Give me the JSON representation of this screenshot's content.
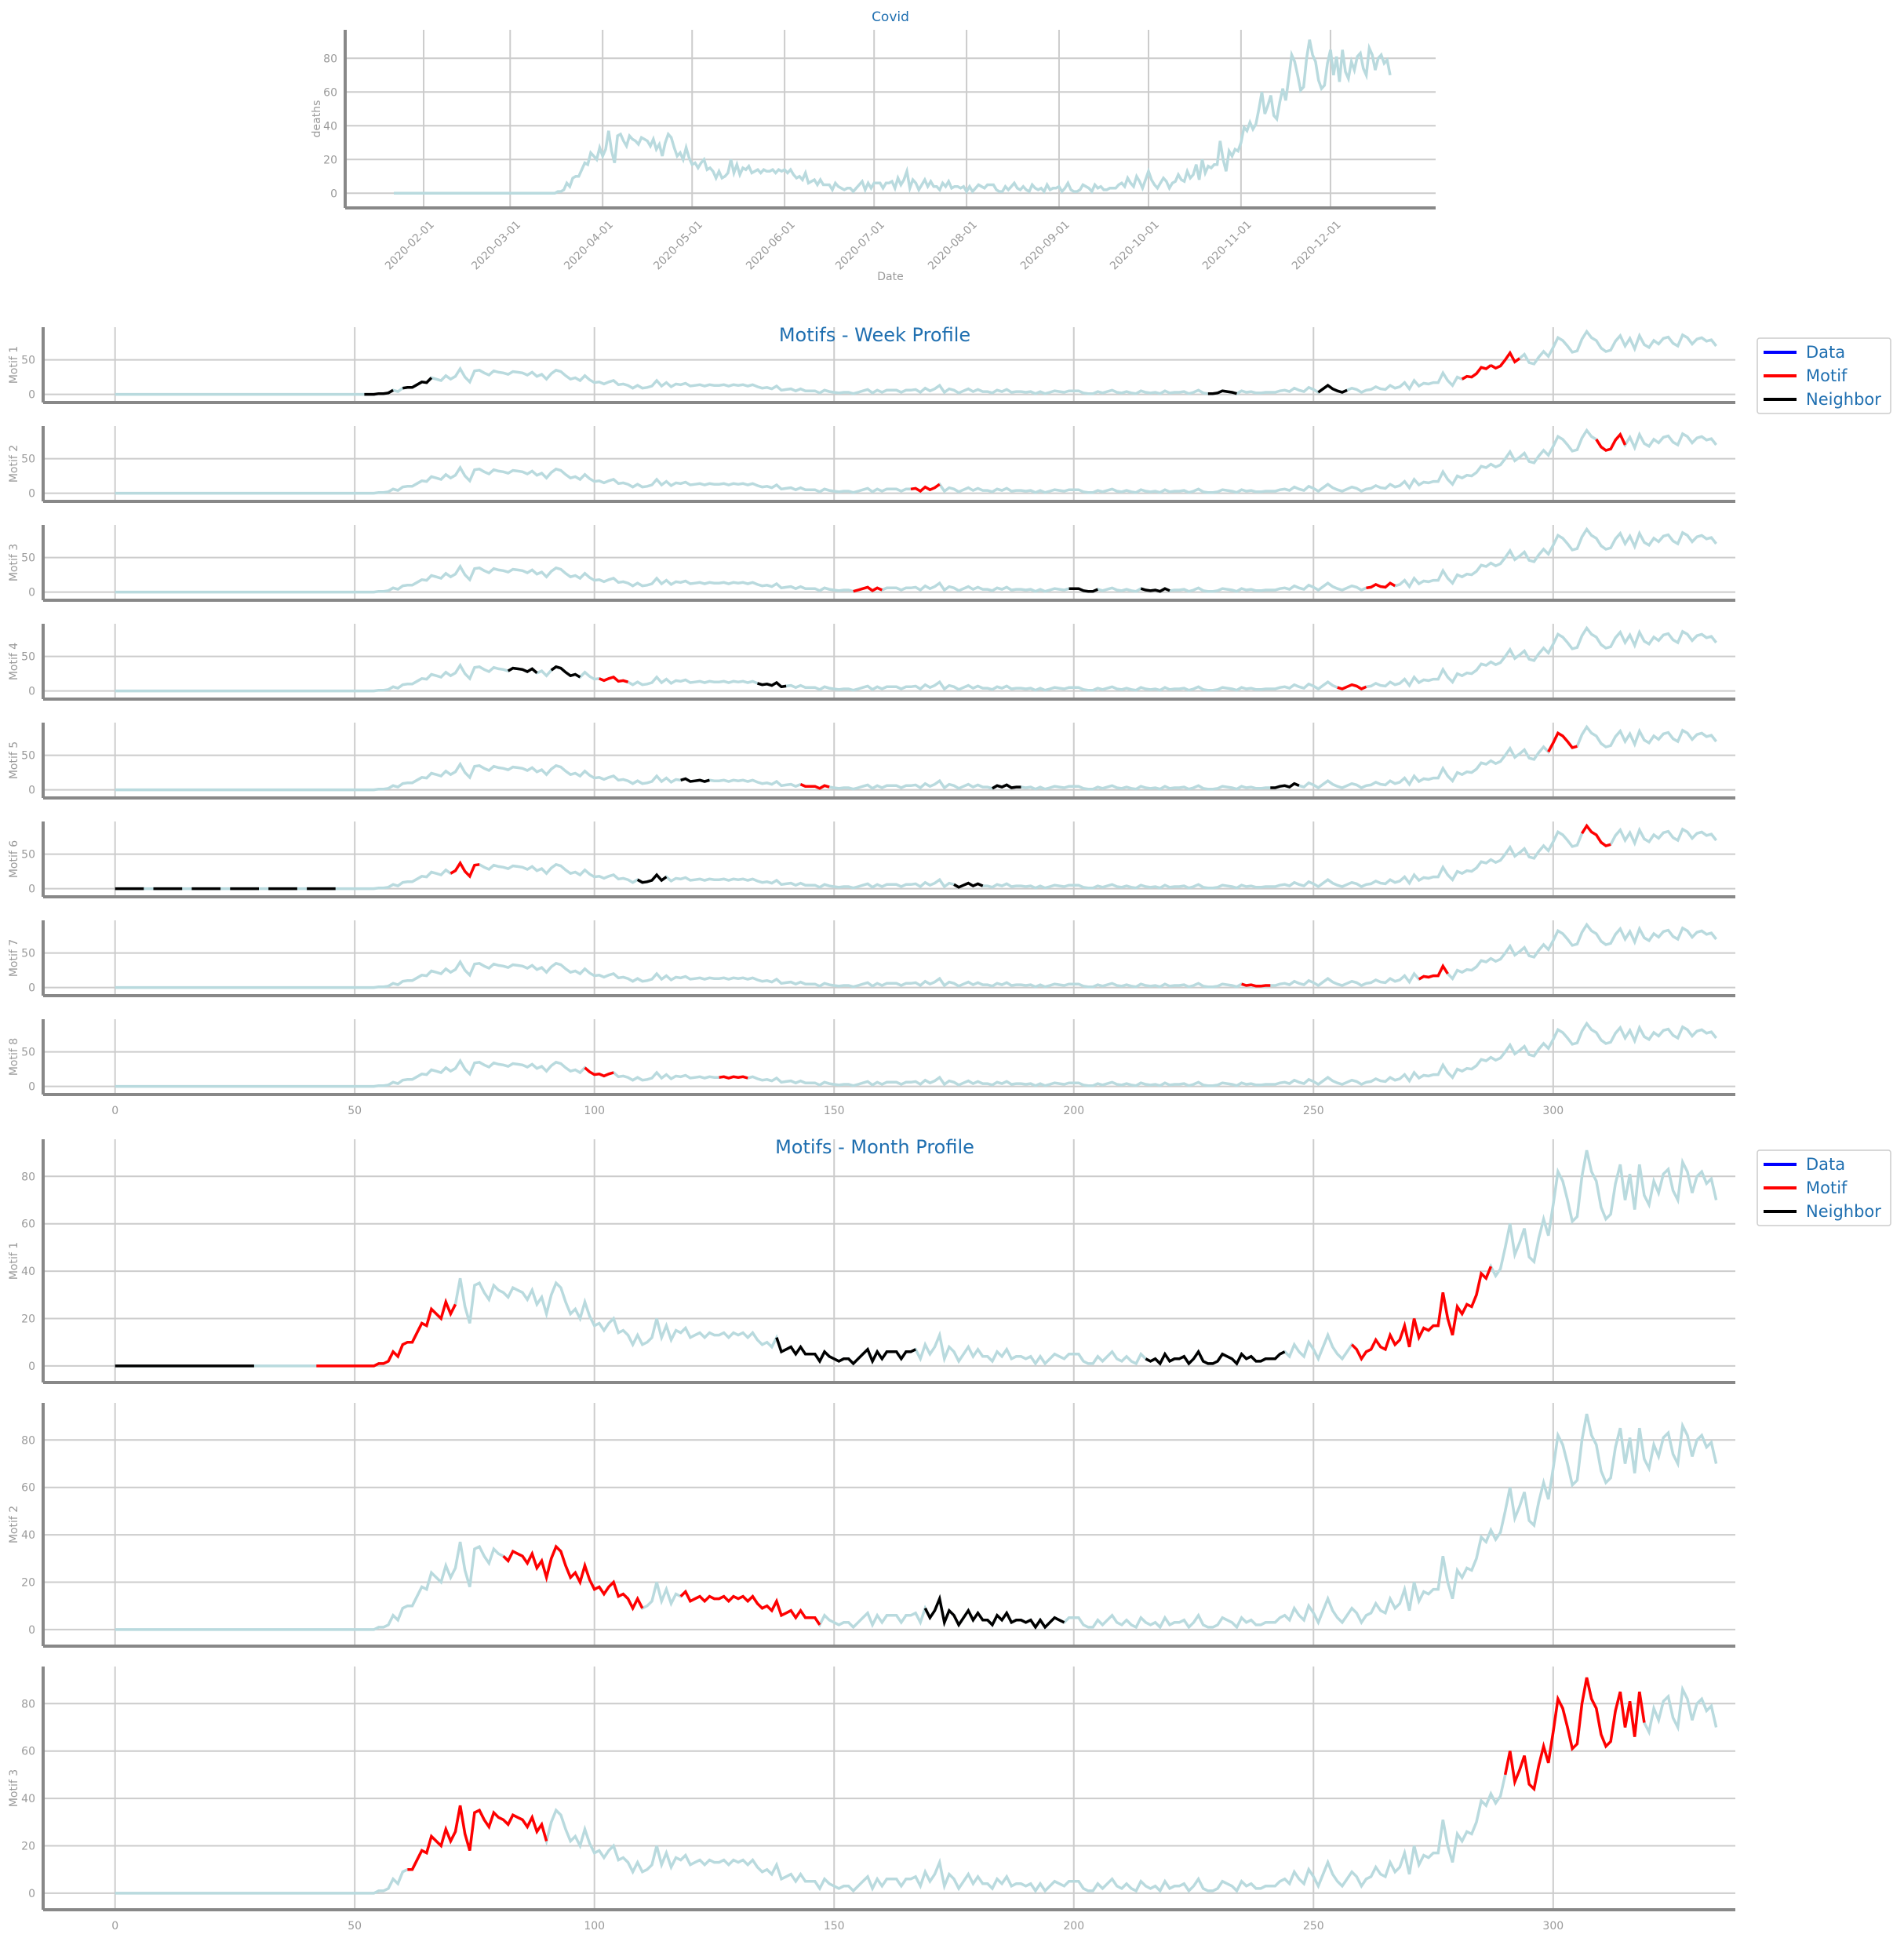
{
  "colors": {
    "data": "#b9dade",
    "motif": "#ff0000",
    "neighbor": "#000000",
    "legend_data": "#0000ff",
    "grid": "#cccccc",
    "spine": "#888888",
    "title": "#1f6fb0"
  },
  "covid_chart": {
    "title": "Covid",
    "xlabel": "Date",
    "ylabel": "deaths",
    "date_ticks": [
      "2020-02-01",
      "2020-03-01",
      "2020-04-01",
      "2020-05-01",
      "2020-06-01",
      "2020-07-01",
      "2020-08-01",
      "2020-09-01",
      "2020-10-01",
      "2020-11-01",
      "2020-12-01"
    ],
    "y_ticks": [
      "0",
      "20",
      "40",
      "60",
      "80"
    ]
  },
  "week_profile": {
    "title": "Motifs - Week Profile",
    "panel_labels": [
      "Motif 1",
      "Motif 2",
      "Motif 3",
      "Motif 4",
      "Motif 5",
      "Motif 6",
      "Motif 7",
      "Motif 8"
    ],
    "y_ticks": [
      "0",
      "50"
    ],
    "x_ticks": [
      "0",
      "50",
      "100",
      "150",
      "200",
      "250",
      "300"
    ]
  },
  "month_profile": {
    "title": "Motifs - Month Profile",
    "panel_labels": [
      "Motif 1",
      "Motif 2",
      "Motif 3"
    ],
    "y_ticks": [
      "0",
      "20",
      "40",
      "60",
      "80"
    ],
    "x_ticks": [
      "0",
      "50",
      "100",
      "150",
      "200",
      "250",
      "300"
    ]
  },
  "legend": {
    "data": "Data",
    "motif": "Motif",
    "neighbor": "Neighbor"
  },
  "chart_data": [
    {
      "type": "line",
      "title": "Covid",
      "xlabel": "Date",
      "ylabel": "deaths",
      "x_start": "2020-01-22",
      "x_range": [
        "2020-01-22",
        "2020-12-08"
      ],
      "ylim": [
        -5,
        95
      ],
      "series": [
        {
          "values": "deaths_series"
        }
      ],
      "grid": true
    },
    {
      "type": "line",
      "title": "Motifs - Week Profile",
      "panels": 8,
      "window": 7,
      "xlim": [
        -15,
        338
      ],
      "motifs": [
        {
          "label": "Motif 1",
          "motif_starts": [
            281,
            287
          ],
          "neighbor_starts": [
            52,
            60,
            228,
            251
          ]
        },
        {
          "label": "Motif 2",
          "motif_starts": [
            166,
            309
          ],
          "neighbor_starts": []
        },
        {
          "label": "Motif 3",
          "motif_starts": [
            154,
            261
          ],
          "neighbor_starts": [
            199,
            214
          ]
        },
        {
          "label": "Motif 4",
          "motif_starts": [
            101,
            255
          ],
          "neighbor_starts": [
            82,
            91,
            134
          ]
        },
        {
          "label": "Motif 5",
          "motif_starts": [
            143,
            299
          ],
          "neighbor_starts": [
            118,
            183,
            241
          ]
        },
        {
          "label": "Motif 6",
          "motif_starts": [
            70,
            306
          ],
          "neighbor_starts": [
            0,
            8,
            16,
            24,
            32,
            40,
            109,
            175
          ]
        },
        {
          "label": "Motif 7",
          "motif_starts": [
            235,
            272
          ],
          "neighbor_starts": []
        },
        {
          "label": "Motif 8",
          "motif_starts": [
            98,
            126
          ],
          "neighbor_starts": []
        }
      ],
      "legend": [
        "Data",
        "Motif",
        "Neighbor"
      ],
      "legend_position": "right"
    },
    {
      "type": "line",
      "title": "Motifs - Month Profile",
      "panels": 3,
      "window": 30,
      "xlim": [
        -15,
        338
      ],
      "motifs": [
        {
          "label": "Motif 1",
          "motif_starts": [
            42,
            258
          ],
          "neighbor_starts": [
            0,
            138,
            215
          ]
        },
        {
          "label": "Motif 2",
          "motif_starts": [
            81,
            118
          ],
          "neighbor_starts": [
            169
          ]
        },
        {
          "label": "Motif 3",
          "motif_starts": [
            61,
            290
          ],
          "neighbor_starts": []
        }
      ],
      "legend": [
        "Data",
        "Motif",
        "Neighbor"
      ],
      "legend_position": "right"
    }
  ],
  "deaths_series": [
    0,
    0,
    0,
    0,
    0,
    0,
    0,
    0,
    0,
    0,
    0,
    0,
    0,
    0,
    0,
    0,
    0,
    0,
    0,
    0,
    0,
    0,
    0,
    0,
    0,
    0,
    0,
    0,
    0,
    0,
    0,
    0,
    0,
    0,
    0,
    0,
    0,
    0,
    0,
    0,
    0,
    0,
    0,
    0,
    0,
    0,
    0,
    0,
    0,
    0,
    0,
    0,
    0,
    0,
    0,
    1,
    1,
    2,
    6,
    4,
    9,
    10,
    10,
    14,
    18,
    17,
    24,
    22,
    20,
    27,
    22,
    26,
    37,
    25,
    18,
    34,
    35,
    31,
    28,
    34,
    32,
    31,
    29,
    33,
    32,
    31,
    28,
    32,
    26,
    29,
    22,
    30,
    35,
    33,
    27,
    22,
    24,
    20,
    27,
    21,
    17,
    18,
    15,
    18,
    20,
    14,
    15,
    13,
    9,
    13,
    9,
    10,
    12,
    20,
    12,
    17,
    11,
    15,
    14,
    16,
    12,
    13,
    14,
    12,
    14,
    13,
    13,
    14,
    12,
    14,
    13,
    14,
    12,
    14,
    11,
    9,
    10,
    8,
    12,
    6,
    7,
    8,
    5,
    8,
    5,
    5,
    5,
    2,
    6,
    4,
    3,
    2,
    3,
    3,
    1,
    3,
    5,
    7,
    2,
    6,
    3,
    6,
    6,
    6,
    3,
    6,
    6,
    7,
    3,
    9,
    5,
    8,
    13,
    3,
    8,
    6,
    2,
    5,
    8,
    4,
    7,
    4,
    4,
    2,
    6,
    4,
    7,
    3,
    4,
    4,
    3,
    4,
    1,
    4,
    1,
    3,
    5,
    4,
    3,
    5,
    5,
    5,
    2,
    1,
    1,
    4,
    2,
    4,
    6,
    3,
    2,
    4,
    2,
    1,
    5,
    3,
    2,
    3,
    1,
    5,
    2,
    3,
    3,
    4,
    1,
    3,
    6,
    2,
    1,
    1,
    2,
    5,
    4,
    3,
    1,
    5,
    3,
    4,
    2,
    2,
    3,
    3,
    3,
    5,
    6,
    4,
    9,
    6,
    4,
    10,
    7,
    3,
    8,
    13,
    8,
    5,
    3,
    6,
    9,
    7,
    3,
    6,
    7,
    11,
    8,
    7,
    13,
    9,
    11,
    17,
    8,
    20,
    12,
    16,
    15,
    17,
    17,
    31,
    20,
    13,
    25,
    22,
    26,
    25,
    30,
    39,
    37,
    42,
    38,
    41,
    50,
    60,
    47,
    52,
    58,
    46,
    44,
    54,
    62,
    55,
    68,
    82,
    78,
    70,
    61,
    63,
    80,
    91,
    82,
    78,
    67,
    62,
    64,
    77,
    85,
    70,
    81,
    66,
    85,
    72,
    68,
    78,
    73,
    81,
    83,
    74,
    70,
    86,
    82,
    73,
    80,
    82,
    77,
    79,
    70
  ],
  "deaths_note": ""
}
